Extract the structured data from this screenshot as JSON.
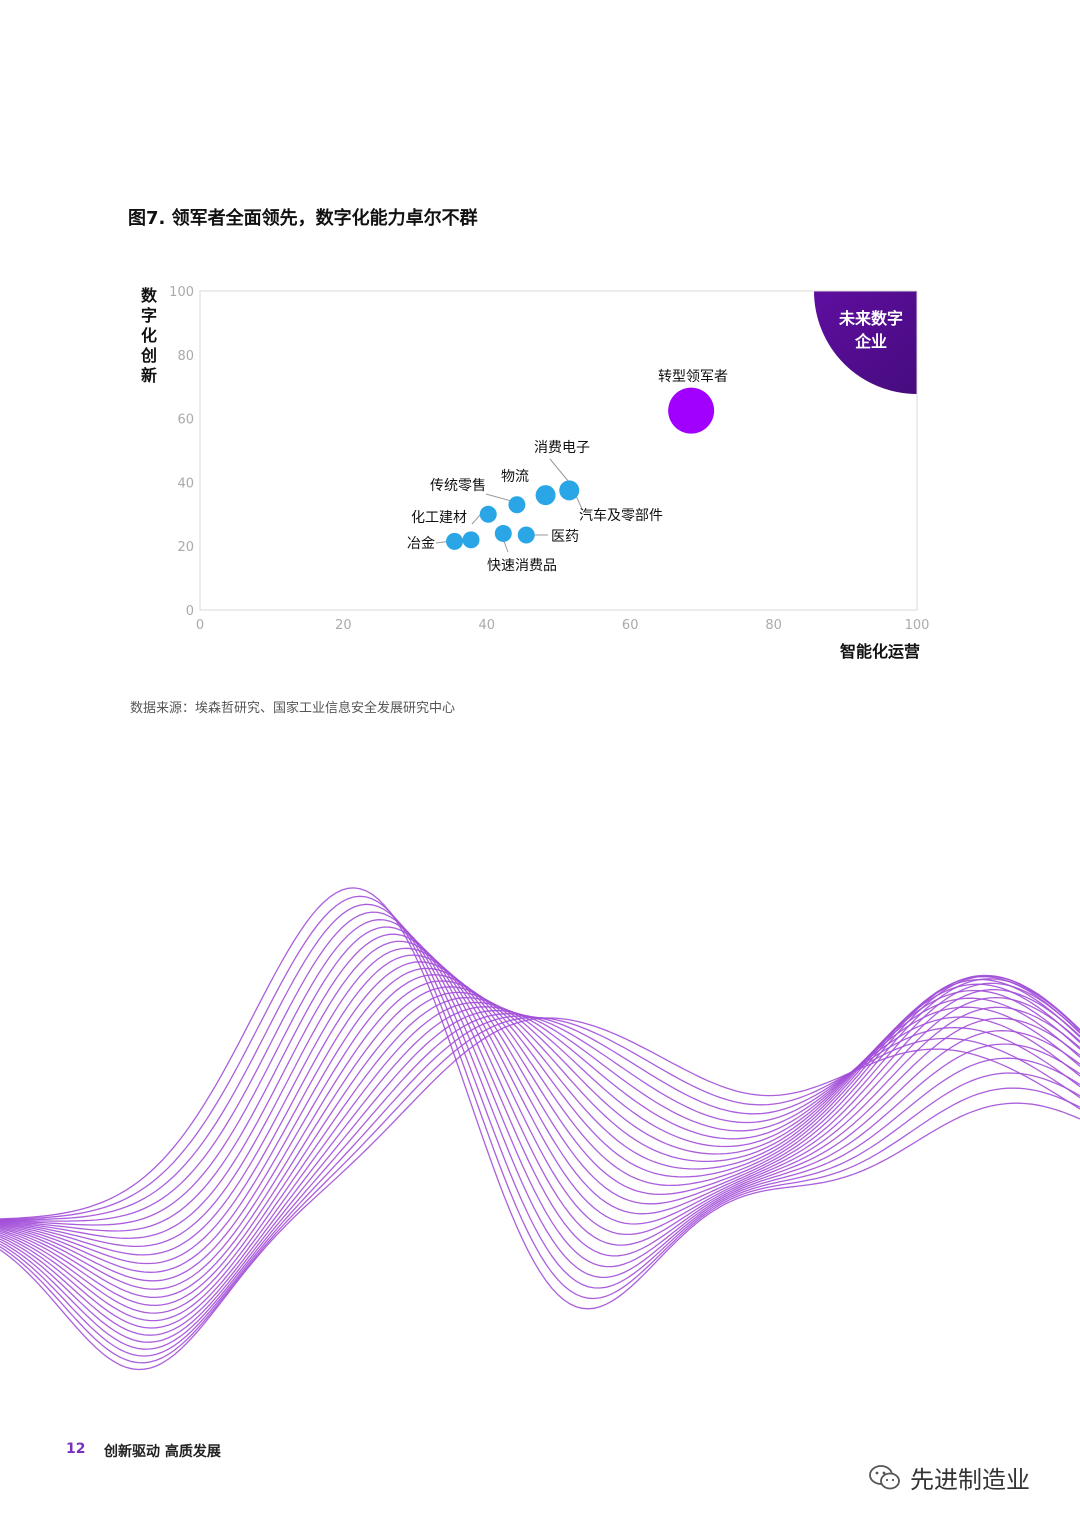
{
  "figure_title": "图7. 领军者全面领先，数字化能力卓尔不群",
  "source_note": "数据来源：埃森哲研究、国家工业信息安全发展研究中心",
  "footer": {
    "page_number": "12",
    "text": "创新驱动 高质发展"
  },
  "watermark": {
    "text": "先进制造业",
    "icon": "wechat-icon"
  },
  "colors": {
    "industry": "#2aa6e6",
    "leader": "#a100ff",
    "future_zone": "#4b0082",
    "waves": "#a24ed8"
  },
  "chart_data": {
    "type": "scatter",
    "xlabel": "智能化运营",
    "ylabel": "数字化创新",
    "xlim": [
      0,
      100
    ],
    "ylim": [
      0,
      100
    ],
    "x_ticks": [
      "0",
      "20",
      "40",
      "60",
      "80",
      "100"
    ],
    "y_ticks": [
      "0",
      "20",
      "40",
      "60",
      "80",
      "100"
    ],
    "grid": false,
    "zone_label": "未来数字企业",
    "points": [
      {
        "label": "冶金",
        "x": 35.5,
        "y": 21.5,
        "group": "industry"
      },
      {
        "label": "",
        "x": 37.8,
        "y": 22,
        "group": "industry"
      },
      {
        "label": "化工建材",
        "x": 40.2,
        "y": 30,
        "group": "industry"
      },
      {
        "label": "传统零售",
        "x": 44.2,
        "y": 33,
        "group": "industry"
      },
      {
        "label": "快速消费品",
        "x": 42.3,
        "y": 24,
        "group": "industry"
      },
      {
        "label": "医药",
        "x": 45.5,
        "y": 23.5,
        "group": "industry"
      },
      {
        "label": "物流",
        "x": 48.2,
        "y": 36,
        "group": "industry"
      },
      {
        "label": "消费电子",
        "x": 51.5,
        "y": 37.5,
        "group": "industry"
      },
      {
        "label": "转型领军者",
        "x": 68.5,
        "y": 62.5,
        "group": "leader"
      }
    ],
    "extra_labels": {
      "auto": "汽车及零部件"
    }
  }
}
